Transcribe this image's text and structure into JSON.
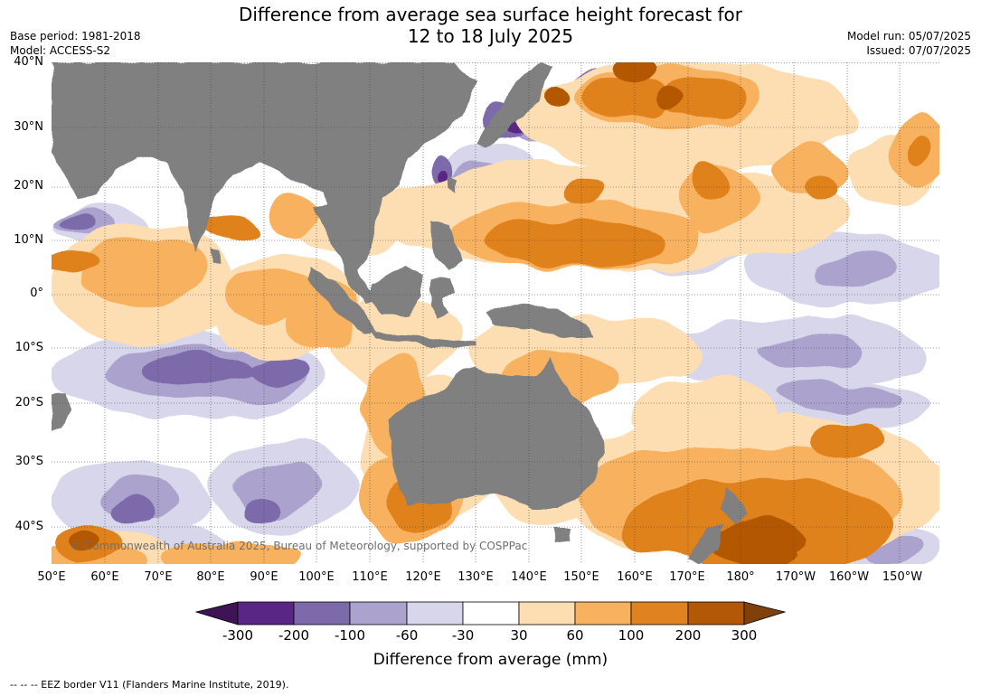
{
  "title_line1": "Difference from average sea surface height forecast for",
  "title_line2": "12 to 18 July 2025",
  "base_period": "Base period: 1981-2018",
  "model": "Model: ACCESS-S2",
  "model_run": "Model run: 05/07/2025",
  "issued": "Issued: 07/07/2025",
  "copyright": "© Commonwealth of Australia 2025, Bureau of Meteorology, supported by COSPPac",
  "lat_labels": [
    "40°N",
    "30°N",
    "20°N",
    "10°N",
    "0°",
    "10°S",
    "20°S",
    "30°S",
    "40°S"
  ],
  "lon_labels": [
    "50°E",
    "60°E",
    "70°E",
    "80°E",
    "90°E",
    "100°E",
    "110°E",
    "120°E",
    "130°E",
    "140°E",
    "150°E",
    "160°E",
    "170°E",
    "180°",
    "170°W",
    "160°W",
    "150°W"
  ],
  "colorbar": {
    "ticks": [
      "-300",
      "-200",
      "-100",
      "-60",
      "-30",
      "30",
      "60",
      "100",
      "200",
      "300"
    ],
    "colors": [
      "#3e1457",
      "#5a2686",
      "#7d6aab",
      "#aba3ce",
      "#d7d6ea",
      "#ffffff",
      "#fddeb3",
      "#f8b25f",
      "#e0821f",
      "#b35806",
      "#80400a"
    ],
    "label": "Difference from average (mm)"
  },
  "land_color": "#808080",
  "footnote": "--  --  -- EEZ border V11 (Flanders Marine Institute, 2019)."
}
